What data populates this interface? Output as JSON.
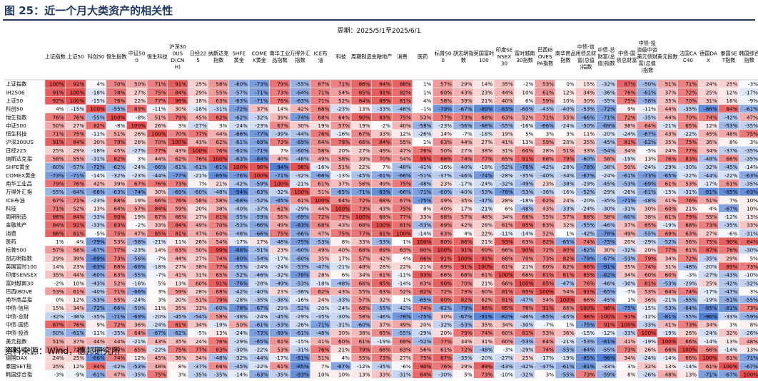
{
  "title": "图 25：近一个月大类资产的相关性",
  "source": "资料来源：Wind，德邦研究所",
  "chart_data": {
    "type": "heatmap",
    "period_label": "周期：2025/5/1至2025/6/1",
    "columns": [
      "上证指数",
      "上证50",
      "科创50",
      "恒生指数",
      "中证500",
      "恒生科技",
      "沪深300US D(CNH)",
      "日经225",
      "纳斯达克指数",
      "SHFE黄金",
      "COMEX黄金",
      "南华工业品指数",
      "万得外汇指数",
      "ICE布油",
      "科技",
      "周期制造",
      "金融地产",
      "消费",
      "医药",
      "标普500",
      "胡志明指数",
      "英国富时100",
      "印度SENSEX30",
      "富时越南30指数",
      "巴西IBOVESPA指数",
      "南华商品指数",
      "中债-信用债总财富(总值)指数",
      "中债-总财富(总值)指数",
      "中债-国债总财富",
      "中债-投资级中资美元债财富(总值)指数",
      "美元指数",
      "法国CAC40",
      "德国DAX",
      "泰国SET指数",
      "韩国综合指数"
    ],
    "rows": [
      "上证指数",
      "IH2506",
      "上证50",
      "科创50",
      "恒生指数",
      "中证500",
      "恒生科技",
      "沪深300US",
      "日经225",
      "纳斯达克指",
      "SHFE黄金",
      "COMEX黄金",
      "南华工业品",
      "万得外汇指",
      "ICE布油",
      "科技",
      "周期制造",
      "金融地产",
      "消费",
      "医药",
      "标普500",
      "胡志明指数",
      "英国富时100",
      "印度SENSEX",
      "富时越南30",
      "巴西IBOVE",
      "南华商品指",
      "中债-信用",
      "中债-总财",
      "中债-国债",
      "中债-投资",
      "美元指数",
      "法国CAC40",
      "德国DAX",
      "泰国SET指",
      "韩国综合指"
    ],
    "values": [
      [
        100,
        92,
        4,
        70,
        50,
        71,
        91,
        25,
        58,
        -60,
        -73,
        79,
        -55,
        67,
        71,
        86,
        84,
        88,
        1,
        57,
        29,
        14,
        35,
        -2,
        53,
        0,
        15,
        -32,
        87,
        -50,
        51,
        71,
        24,
        25,
        -3
      ],
      [
        91,
        100,
        -18,
        78,
        27,
        75,
        84,
        29,
        55,
        -57,
        -71,
        73,
        -64,
        71,
        54,
        85,
        91,
        82,
        1,
        60,
        43,
        23,
        44,
        10,
        61,
        12,
        34,
        -36,
        76,
        -61,
        37,
        72,
        25,
        12,
        -17
      ],
      [
        92,
        100,
        -15,
        76,
        22,
        77,
        96,
        18,
        63,
        -63,
        -71,
        76,
        -63,
        71,
        52,
        84,
        89,
        81,
        4,
        58,
        39,
        21,
        40,
        6,
        59,
        10,
        30,
        -35,
        75,
        -58,
        35,
        70,
        31,
        16,
        -9
      ],
      [
        4,
        -15,
        100,
        -55,
        83,
        -11,
        30,
        -18,
        -31,
        -72,
        37,
        14,
        42,
        68,
        -23,
        13,
        -33,
        -46,
        -1,
        -79,
        -67,
        -89,
        -83,
        -60,
        -43,
        -40,
        -53,
        -72,
        9,
        -11,
        44,
        -35,
        -86,
        84,
        -61
      ],
      [
        76,
        76,
        -55,
        100,
        -8,
        51,
        79,
        45,
        82,
        -62,
        -32,
        39,
        -74,
        68,
        64,
        90,
        83,
        75,
        53,
        77,
        73,
        68,
        63,
        52,
        71,
        55,
        -66,
        -71,
        72,
        -35,
        44,
        70,
        74,
        -42,
        47
      ],
      [
        50,
        27,
        82,
        -8,
        100,
        26,
        3,
        -27,
        3,
        -24,
        -23,
        67,
        30,
        19,
        57,
        19,
        -2,
        40,
        -58,
        -23,
        -56,
        -68,
        -55,
        -16,
        -66,
        -24,
        -50,
        -69,
        36,
        64,
        -21,
        65,
        12,
        -53,
        -35
      ],
      [
        71,
        75,
        -11,
        51,
        26,
        100,
        70,
        77,
        44,
        -66,
        -77,
        -39,
        -44,
        76,
        -16,
        67,
        33,
        12,
        -26,
        14,
        -7,
        -18,
        19,
        5,
        3,
        3,
        11,
        -20,
        -24,
        -67,
        43,
        -22,
        45,
        48,
        75
      ],
      [
        91,
        84,
        30,
        79,
        26,
        70,
        100,
        43,
        62,
        -61,
        -69,
        73,
        -69,
        64,
        79,
        66,
        84,
        55,
        1,
        63,
        44,
        27,
        41,
        13,
        59,
        20,
        35,
        -45,
        81,
        -62,
        35,
        75,
        36,
        8,
        3
      ],
      [
        25,
        29,
        -18,
        45,
        -27,
        77,
        43,
        100,
        76,
        -61,
        -71,
        7,
        -60,
        58,
        20,
        27,
        49,
        47,
        76,
        50,
        27,
        38,
        31,
        60,
        28,
        51,
        33,
        -54,
        34,
        -5,
        24,
        77,
        34,
        -37,
        -35
      ],
      [
        58,
        55,
        -31,
        82,
        3,
        44,
        62,
        76,
        100,
        -63,
        -84,
        40,
        -48,
        49,
        58,
        39,
        70,
        54,
        99,
        88,
        74,
        77,
        65,
        91,
        68,
        79,
        -60,
        58,
        -19,
        13,
        76,
        83,
        -48,
        66,
        -35
      ],
      [
        -60,
        -57,
        -72,
        -62,
        -24,
        -66,
        -61,
        -61,
        -81,
        100,
        96,
        -94,
        98,
        -16,
        51,
        22,
        7,
        -48,
        -41,
        -16,
        -40,
        -18,
        -52,
        -76,
        -42,
        -28,
        -78,
        -38,
        50,
        -24,
        -29,
        -30,
        -32,
        -45,
        -14
      ],
      [
        -73,
        -71,
        -14,
        -32,
        -23,
        -44,
        -77,
        -21,
        -85,
        -76,
        100,
        -71,
        -32,
        -66,
        -13,
        -45,
        -61,
        -66,
        -51,
        -37,
        -46,
        -74,
        -28,
        -35,
        -40,
        -34,
        -67,
        -24,
        -61,
        -73,
        -65,
        -22,
        -44,
        -22,
        -63
      ],
      [
        79,
        76,
        42,
        39,
        67,
        76,
        73,
        7,
        21,
        -42,
        -59,
        100,
        -21,
        61,
        37,
        56,
        49,
        75,
        -48,
        23,
        -17,
        -24,
        -32,
        -49,
        23,
        -38,
        -29,
        -45,
        -53,
        -69,
        61,
        53,
        -17,
        61,
        -35
      ],
      [
        -55,
        -64,
        -66,
        -63,
        -74,
        30,
        -69,
        -60,
        -48,
        -94,
        -63,
        -32,
        100,
        51,
        -65,
        -71,
        -83,
        -66,
        -71,
        -60,
        -40,
        -53,
        -78,
        -53,
        -36,
        -16,
        -52,
        -29,
        -26,
        -61,
        -15,
        -31,
        -81,
        -85,
        -83
      ],
      [
        67,
        71,
        -23,
        68,
        19,
        66,
        76,
        58,
        58,
        -68,
        -52,
        -65,
        61,
        100,
        64,
        72,
        68,
        67,
        -75,
        49,
        35,
        -47,
        28,
        -18,
        62,
        24,
        -20,
        -35,
        -71,
        -48,
        41,
        76,
        51,
        7,
        10
      ],
      [
        71,
        52,
        13,
        64,
        57,
        84,
        59,
        20,
        38,
        -40,
        -37,
        61,
        -29,
        44,
        100,
        73,
        43,
        75,
        8,
        40,
        17,
        -21,
        6,
        -48,
        43,
        -33,
        -24,
        -30,
        -31,
        30,
        60,
        21,
        4,
        -67,
        10
      ],
      [
        86,
        84,
        -33,
        90,
        19,
        67,
        66,
        27,
        81,
        -55,
        -59,
        56,
        -69,
        72,
        73,
        100,
        68,
        77,
        33,
        68,
        57,
        48,
        34,
        66,
        55,
        57,
        68,
        58,
        -60,
        38,
        61,
        79,
        55,
        -12,
        13
      ],
      [
        84,
        91,
        -33,
        83,
        -2,
        33,
        84,
        49,
        70,
        -53,
        -66,
        49,
        -83,
        68,
        43,
        68,
        100,
        81,
        -53,
        69,
        42,
        28,
        61,
        85,
        63,
        32,
        -55,
        -46,
        37,
        65,
        -19,
        68,
        73,
        -35,
        33
      ],
      [
        88,
        81,
        -5,
        75,
        47,
        85,
        81,
        47,
        60,
        -48,
        -66,
        75,
        -66,
        47,
        75,
        77,
        81,
        100,
        -14,
        63,
        4,
        22,
        -11,
        -14,
        52,
        1,
        -42,
        -78,
        49,
        -55,
        69,
        63,
        27,
        -6,
        -31
      ],
      [
        1,
        4,
        -79,
        53,
        -58,
        -21,
        11,
        26,
        54,
        -17,
        17,
        -48,
        -75,
        -53,
        8,
        33,
        -53,
        1,
        100,
        80,
        86,
        21,
        93,
        63,
        82,
        -65,
        74,
        -75,
        20,
        -29,
        -52,
        56,
        75,
        90,
        84
      ],
      [
        57,
        58,
        -67,
        77,
        -23,
        14,
        63,
        50,
        99,
        -88,
        -51,
        23,
        -60,
        49,
        40,
        68,
        69,
        63,
        80,
        100,
        91,
        69,
        66,
        90,
        72,
        80,
        -62,
        30,
        -32,
        20,
        77,
        61,
        87,
        76,
        -30
      ],
      [
        29,
        39,
        -89,
        73,
        -56,
        -7,
        44,
        27,
        74,
        -80,
        -54,
        -17,
        -60,
        35,
        17,
        57,
        42,
        4,
        86,
        91,
        100,
        91,
        68,
        70,
        73,
        82,
        -79,
        -67,
        -53,
        79,
        34,
        72,
        -35,
        29,
        5
      ],
      [
        14,
        23,
        -83,
        68,
        -68,
        -18,
        27,
        38,
        77,
        -55,
        -24,
        -24,
        -53,
        -47,
        -21,
        48,
        28,
        22,
        21,
        69,
        91,
        100,
        61,
        21,
        60,
        62,
        86,
        -91,
        35,
        74,
        31,
        -48,
        -20,
        89,
        73
      ],
      [
        35,
        44,
        -60,
        63,
        -55,
        -7,
        41,
        31,
        65,
        -52,
        -46,
        -32,
        -78,
        28,
        6,
        34,
        61,
        -11,
        93,
        66,
        68,
        61,
        100,
        66,
        81,
        81,
        85,
        -82,
        34,
        60,
        60,
        -3,
        -27,
        -43,
        -10
      ],
      [
        -2,
        10,
        -43,
        52,
        -16,
        5,
        13,
        60,
        91,
        -76,
        -28,
        -49,
        -53,
        -18,
        -48,
        66,
        85,
        -14,
        63,
        90,
        70,
        21,
        66,
        100,
        85,
        -47,
        76,
        -46,
        -30,
        81,
        -53,
        -29,
        25,
        -42,
        -32
      ],
      [
        53,
        61,
        -40,
        71,
        -66,
        3,
        59,
        28,
        68,
        -42,
        -40,
        23,
        -36,
        62,
        43,
        55,
        63,
        52,
        82,
        72,
        73,
        60,
        81,
        85,
        100,
        54,
        91,
        -65,
        -7,
        53,
        64,
        74,
        -17,
        -47,
        3
      ],
      [
        0,
        12,
        -53,
        55,
        -24,
        3,
        20,
        51,
        79,
        -28,
        -35,
        -38,
        -16,
        24,
        -33,
        57,
        32,
        1,
        -65,
        80,
        82,
        62,
        81,
        -47,
        54,
        100,
        66,
        -45,
        1,
        36,
        -21,
        -55,
        -19,
        -61,
        -55
      ],
      [
        15,
        34,
        -72,
        -66,
        -50,
        11,
        35,
        33,
        -60,
        -78,
        -67,
        -29,
        -52,
        -20,
        -24,
        68,
        -55,
        -42,
        74,
        -62,
        -79,
        86,
        85,
        76,
        91,
        66,
        100,
        96,
        -75,
        -15,
        -53,
        -64,
        -85,
        -81,
        73
      ],
      [
        -32,
        -36,
        -35,
        -71,
        -69,
        -20,
        -45,
        -54,
        58,
        -38,
        -24,
        -45,
        -29,
        -35,
        -30,
        58,
        -46,
        -78,
        -75,
        30,
        -67,
        -91,
        -82,
        -46,
        -65,
        -45,
        96,
        100,
        91,
        -12,
        -81,
        -55,
        -96,
        -33,
        -59
      ],
      [
        87,
        76,
        9,
        72,
        36,
        -24,
        81,
        34,
        -19,
        50,
        -61,
        -53,
        -26,
        -71,
        -31,
        -60,
        37,
        49,
        20,
        -32,
        -53,
        35,
        34,
        -30,
        -7,
        1,
        -75,
        91,
        100,
        -33,
        41,
        73,
        34,
        3,
        8
      ],
      [
        -50,
        -61,
        -11,
        -35,
        64,
        -67,
        -62,
        -5,
        13,
        -24,
        -73,
        -69,
        -61,
        -48,
        30,
        38,
        65,
        -55,
        -29,
        20,
        79,
        74,
        60,
        81,
        53,
        36,
        -15,
        -12,
        -33,
        100,
        -19,
        26,
        -24,
        32,
        -26
      ],
      [
        51,
        37,
        44,
        44,
        -21,
        43,
        35,
        24,
        76,
        -29,
        -65,
        61,
        -15,
        41,
        60,
        61,
        -19,
        69,
        -52,
        77,
        34,
        31,
        60,
        -53,
        64,
        -21,
        -53,
        -81,
        41,
        -19,
        100,
        66,
        -14,
        13,
        48
      ],
      [
        71,
        72,
        -35,
        70,
        65,
        -22,
        75,
        77,
        83,
        -30,
        -22,
        53,
        -31,
        76,
        21,
        79,
        68,
        63,
        56,
        61,
        72,
        -48,
        -3,
        -29,
        74,
        -55,
        -64,
        -55,
        73,
        26,
        66,
        100,
        66,
        -14,
        13
      ],
      [
        24,
        25,
        -86,
        74,
        12,
        45,
        36,
        34,
        -48,
        -32,
        -44,
        -17,
        -81,
        51,
        4,
        55,
        73,
        27,
        75,
        87,
        -35,
        -20,
        -27,
        25,
        -17,
        -19,
        -85,
        -96,
        34,
        -24,
        -14,
        66,
        100,
        61,
        -71
      ],
      [
        25,
        12,
        84,
        -42,
        -53,
        48,
        8,
        -37,
        66,
        -45,
        -22,
        61,
        -85,
        7,
        -67,
        -12,
        -35,
        -6,
        90,
        76,
        29,
        89,
        -43,
        -42,
        -47,
        -61,
        -81,
        -33,
        3,
        32,
        13,
        -14,
        61,
        100,
        -67
      ],
      [
        -3,
        -9,
        -61,
        47,
        -35,
        75,
        3,
        -35,
        -35,
        -14,
        -63,
        -35,
        -83,
        10,
        10,
        13,
        33,
        -31,
        84,
        -30,
        5,
        73,
        -10,
        -32,
        3,
        -55,
        73,
        -59,
        8,
        -26,
        48,
        13,
        -71,
        -67,
        100
      ]
    ]
  }
}
